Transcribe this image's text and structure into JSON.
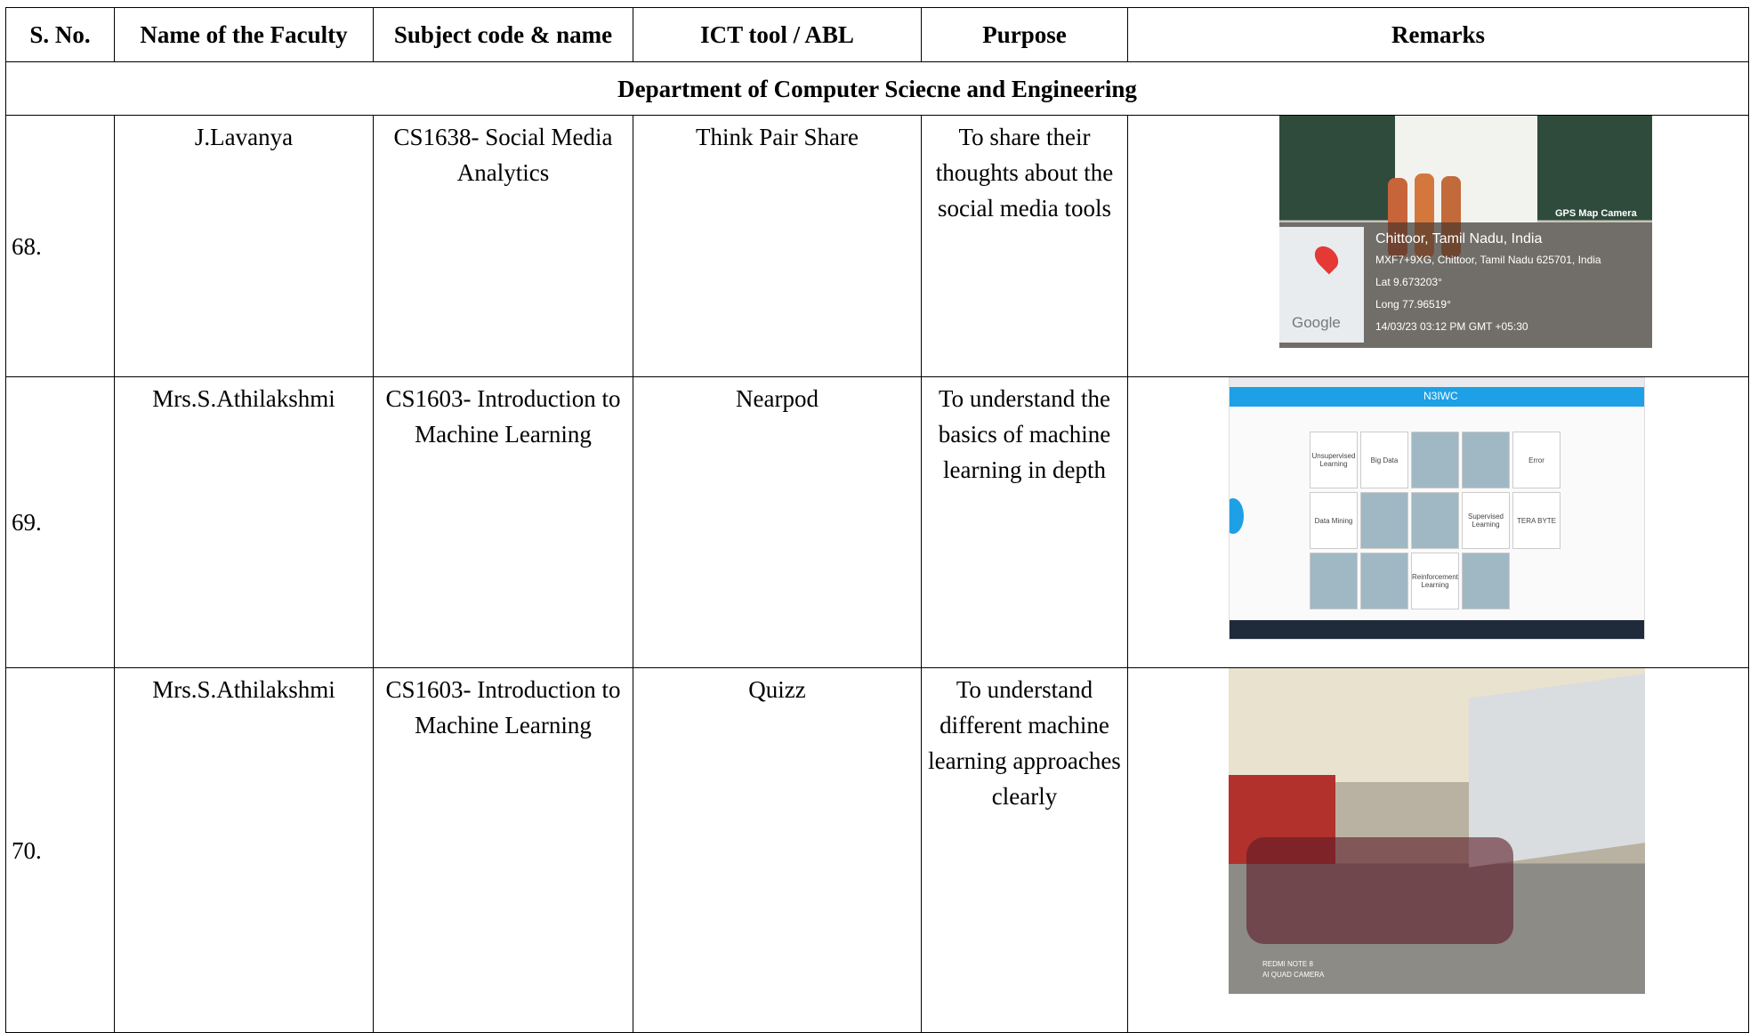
{
  "table": {
    "header": [
      "S. No.",
      "Name of the Faculty",
      "Subject code &  name",
      "ICT tool / ABL",
      "Purpose",
      "Remarks"
    ],
    "section": "Department of Computer Sciecne and Engineering",
    "rows": [
      [
        "68.",
        "J.Lavanya",
        "CS1638- Social Media Analytics",
        "Think Pair Share",
        "To share their thoughts about the social media tools"
      ],
      [
        "69.",
        "Mrs.S.Athilakshmi",
        "CS1603- Introduction to Machine Learning",
        "Nearpod",
        "To understand the basics of machine learning in depth"
      ],
      [
        "70.",
        "Mrs.S.Athilakshmi",
        "CS1603- Introduction to Machine Learning",
        "Quizz",
        "To understand different machine learning approaches clearly"
      ]
    ]
  },
  "photos": {
    "gps": {
      "app": "GPS Map Camera",
      "place": "Chittoor, Tamil Nadu, India",
      "address": "MXF7+9XG, Chittoor, Tamil Nadu 625701, India",
      "lat": "Lat 9.673203°",
      "long": "Long 77.96519°",
      "time": "14/03/23 03:12 PM GMT +05:30",
      "map": "Google"
    },
    "nearpod": {
      "code": "N3IWC",
      "tiles": [
        "Unsupervised Learning",
        "Big Data",
        "Error",
        "Data Mining",
        "Supervised Learning",
        "TERA BYTE",
        "Reinforcement Learning"
      ]
    },
    "camera": {
      "watermark": [
        "REDMI NOTE 8",
        "AI QUAD CAMERA"
      ]
    }
  }
}
